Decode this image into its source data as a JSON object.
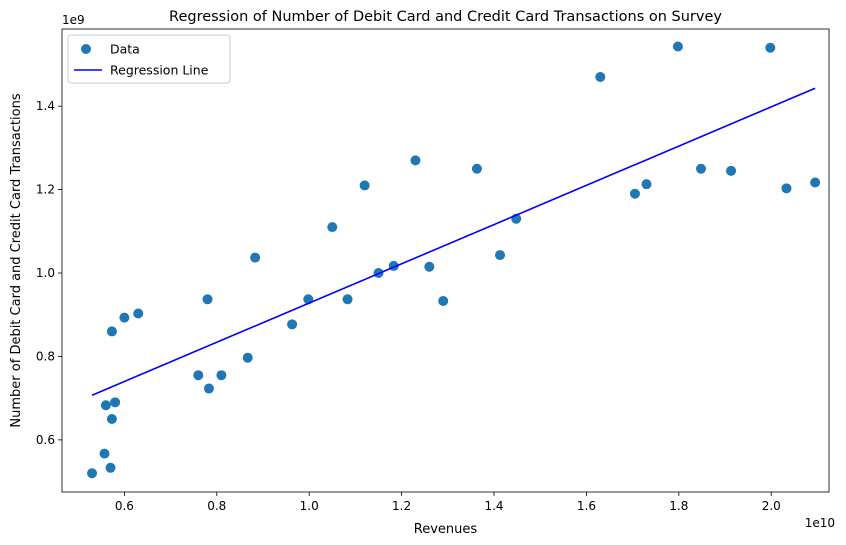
{
  "chart_data": {
    "type": "scatter",
    "title": "Regression of Number of Debit Card and Credit Card Transactions on Survey",
    "xlabel": "Revenues",
    "ylabel": "Number of Debit Card and Credit Card Transactions",
    "x_offset_label": "1e10",
    "y_offset_label": "1e9",
    "xlim": [
      0.465,
      2.125
    ],
    "ylim": [
      0.475,
      1.585
    ],
    "x_ticks": [
      0.6,
      0.8,
      1.0,
      1.2,
      1.4,
      1.6,
      1.8,
      2.0
    ],
    "x_tick_labels": [
      "0.6",
      "0.8",
      "1.0",
      "1.2",
      "1.4",
      "1.6",
      "1.8",
      "2.0"
    ],
    "y_ticks": [
      0.6,
      0.8,
      1.0,
      1.2,
      1.4
    ],
    "y_tick_labels": [
      "0.6",
      "0.8",
      "1.0",
      "1.2",
      "1.4"
    ],
    "grid": false,
    "legend_position": "top-left",
    "series": [
      {
        "name": "Data",
        "kind": "scatter",
        "color": "#1f77b4",
        "points": [
          [
            0.53,
            0.52
          ],
          [
            0.557,
            0.567
          ],
          [
            0.56,
            0.683
          ],
          [
            0.57,
            0.533
          ],
          [
            0.573,
            0.65
          ],
          [
            0.573,
            0.86
          ],
          [
            0.58,
            0.69
          ],
          [
            0.6,
            0.893
          ],
          [
            0.63,
            0.903
          ],
          [
            0.76,
            0.755
          ],
          [
            0.78,
            0.937
          ],
          [
            0.783,
            0.723
          ],
          [
            0.81,
            0.755
          ],
          [
            0.867,
            0.797
          ],
          [
            0.883,
            1.037
          ],
          [
            0.963,
            0.877
          ],
          [
            0.998,
            0.937
          ],
          [
            1.05,
            1.11
          ],
          [
            1.083,
            0.937
          ],
          [
            1.12,
            1.21
          ],
          [
            1.15,
            1.0
          ],
          [
            1.183,
            1.017
          ],
          [
            1.23,
            1.27
          ],
          [
            1.26,
            1.015
          ],
          [
            1.29,
            0.933
          ],
          [
            1.363,
            1.25
          ],
          [
            1.413,
            1.043
          ],
          [
            1.448,
            1.13
          ],
          [
            1.63,
            1.47
          ],
          [
            1.705,
            1.19
          ],
          [
            1.73,
            1.213
          ],
          [
            1.798,
            1.543
          ],
          [
            1.848,
            1.25
          ],
          [
            1.913,
            1.245
          ],
          [
            1.998,
            1.54
          ],
          [
            2.033,
            1.203
          ],
          [
            2.095,
            1.217
          ]
        ]
      },
      {
        "name": "Regression Line",
        "kind": "line",
        "color": "#0000ff",
        "points": [
          [
            0.53,
            0.707
          ],
          [
            2.095,
            1.443
          ]
        ]
      }
    ]
  }
}
